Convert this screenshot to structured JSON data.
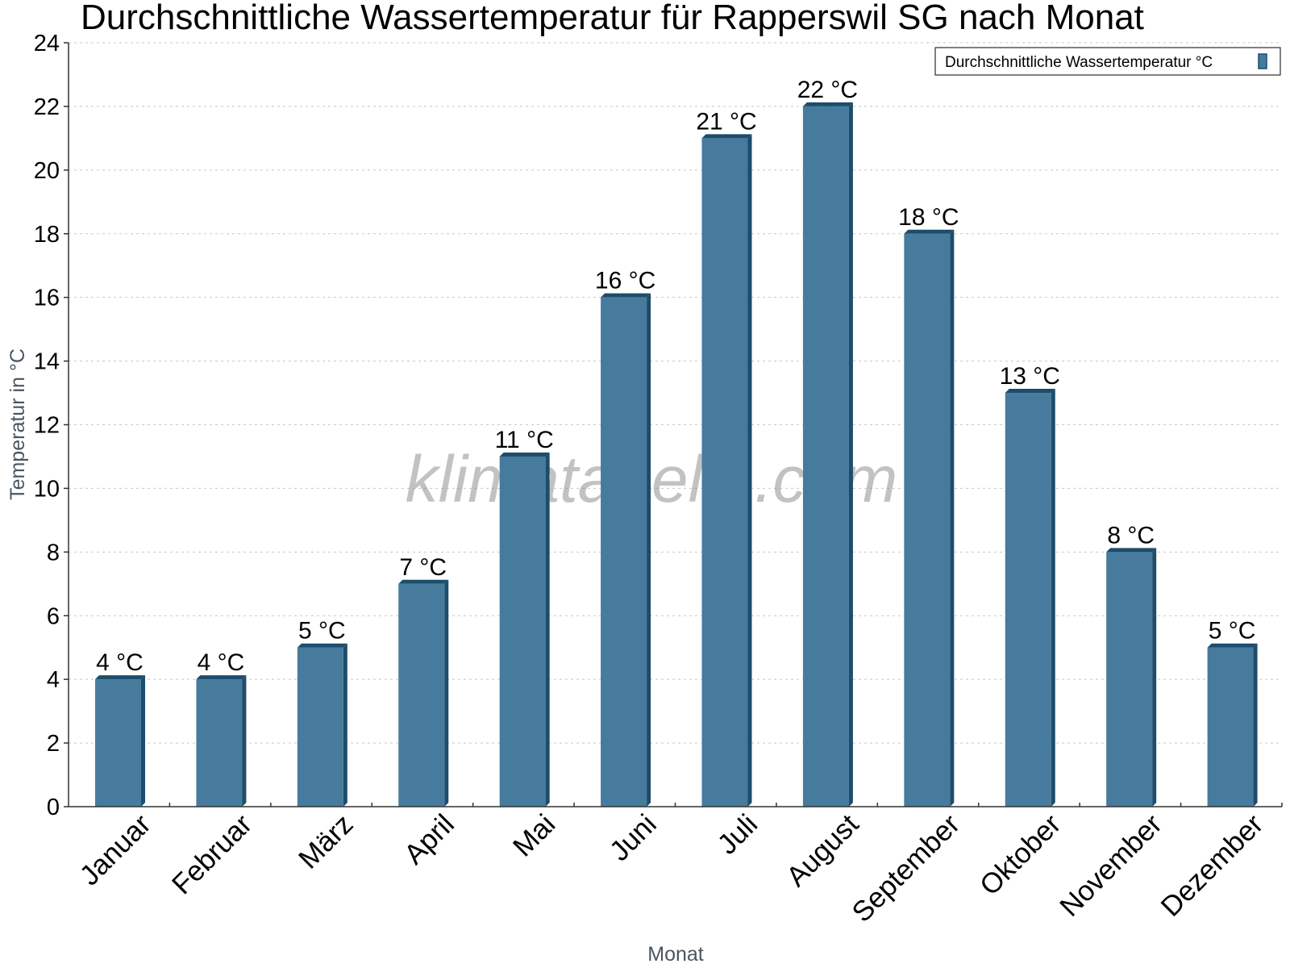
{
  "chart_data": {
    "type": "bar",
    "title": "Durchschnittliche Wassertemperatur für Rapperswil SG nach Monat",
    "xlabel": "Monat",
    "ylabel": "Temperatur in °C",
    "categories": [
      "Januar",
      "Februar",
      "März",
      "April",
      "Mai",
      "Juni",
      "Juli",
      "August",
      "September",
      "Oktober",
      "November",
      "Dezember"
    ],
    "series": [
      {
        "name": "Durchschnittliche Wassertemperatur °C",
        "values": [
          4,
          4,
          5,
          7,
          11,
          16,
          21,
          22,
          18,
          13,
          8,
          5
        ],
        "value_labels": [
          "4 °C",
          "4 °C",
          "5 °C",
          "7 °C",
          "11 °C",
          "16 °C",
          "21 °C",
          "22 °C",
          "18 °C",
          "13 °C",
          "8 °C",
          "5 °C"
        ]
      }
    ],
    "ylim": [
      0,
      24
    ],
    "yticks": [
      0,
      2,
      4,
      6,
      8,
      10,
      12,
      14,
      16,
      18,
      20,
      22,
      24
    ],
    "ytick_labels": [
      "0",
      "2",
      "4",
      "6",
      "8",
      "10",
      "12",
      "14",
      "16",
      "18",
      "20",
      "22",
      "24"
    ],
    "grid": true,
    "legend_position": "top-right",
    "watermark": "klimatabelle.com",
    "colors": {
      "bar": "#467b9d",
      "bar_dark": "#1e4c6b",
      "axis_label": "#4a5560"
    }
  }
}
